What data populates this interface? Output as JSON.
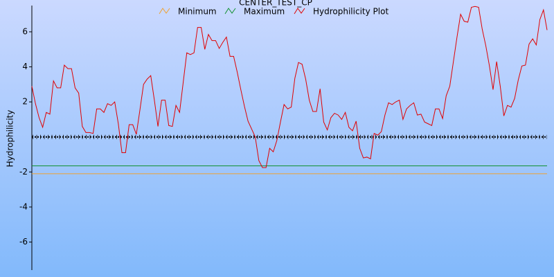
{
  "chart_data": {
    "type": "line",
    "title": "CENTER_TEST_CP",
    "y_label": "Hydrophilicity",
    "ylim": [
      -7.6,
      7.5
    ],
    "yticks": [
      -6,
      -4,
      -2,
      2,
      4,
      6
    ],
    "series": [
      {
        "name": "Minimum",
        "color": "#f0a030",
        "values": [
          -2.1
        ]
      },
      {
        "name": "Maximum",
        "color": "#109030",
        "values": [
          -1.65
        ]
      },
      {
        "name": "Hydrophilicity Plot",
        "color": "#e00000",
        "values": [
          2.9,
          1.9,
          1.1,
          0.55,
          1.4,
          1.3,
          3.2,
          2.8,
          2.8,
          4.1,
          3.9,
          3.9,
          2.8,
          2.5,
          0.6,
          0.25,
          0.25,
          0.2,
          1.6,
          1.6,
          1.4,
          1.9,
          1.8,
          2.0,
          0.75,
          -0.9,
          -0.9,
          0.7,
          0.7,
          0.15,
          1.55,
          3.0,
          3.3,
          3.5,
          2.1,
          0.6,
          2.1,
          2.1,
          0.65,
          0.6,
          1.8,
          1.4,
          3.1,
          4.8,
          4.7,
          4.8,
          6.25,
          6.25,
          5.0,
          5.85,
          5.5,
          5.5,
          5.05,
          5.4,
          5.7,
          4.6,
          4.6,
          3.7,
          2.7,
          1.75,
          0.9,
          0.45,
          0.0,
          -1.35,
          -1.75,
          -1.75,
          -0.65,
          -0.85,
          -0.2,
          0.85,
          1.85,
          1.6,
          1.7,
          3.35,
          4.25,
          4.15,
          3.3,
          2.1,
          1.45,
          1.45,
          2.75,
          0.85,
          0.4,
          1.1,
          1.35,
          1.25,
          1.0,
          1.4,
          0.55,
          0.35,
          0.9,
          -0.65,
          -1.2,
          -1.15,
          -1.25,
          0.2,
          0.1,
          0.3,
          1.25,
          1.95,
          1.85,
          2.0,
          2.1,
          1.0,
          1.6,
          1.8,
          1.95,
          1.25,
          1.3,
          0.85,
          0.75,
          0.65,
          1.6,
          1.6,
          1.05,
          2.35,
          2.9,
          4.3,
          5.7,
          7.0,
          6.6,
          6.55,
          7.4,
          7.45,
          7.4,
          6.15,
          5.2,
          4.05,
          2.7,
          4.3,
          2.9,
          1.2,
          1.8,
          1.7,
          2.2,
          3.25,
          4.05,
          4.1,
          5.3,
          5.6,
          5.25,
          6.7,
          7.25,
          6.1
        ]
      }
    ]
  }
}
